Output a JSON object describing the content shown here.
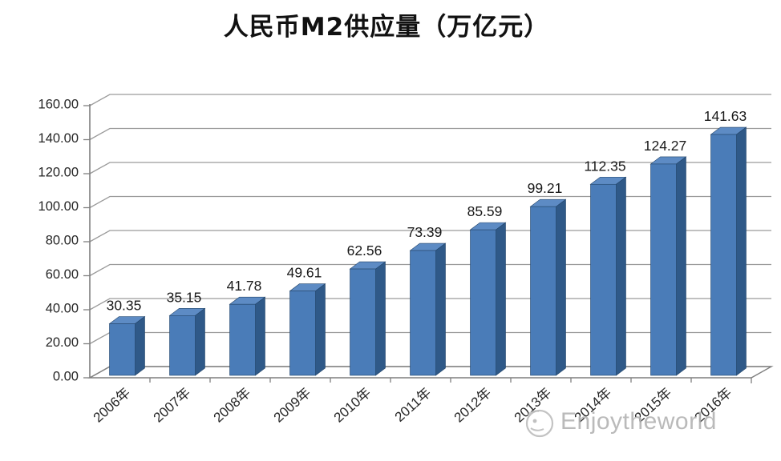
{
  "chart_data": {
    "type": "bar",
    "style": "3d-column",
    "title": "人民币M2供应量（万亿元）",
    "categories": [
      "2006年",
      "2007年",
      "2008年",
      "2009年",
      "2010年",
      "2011年",
      "2012年",
      "2013年",
      "2014年",
      "2015年",
      "2016年"
    ],
    "values": [
      30.35,
      35.15,
      41.78,
      49.61,
      62.56,
      73.39,
      85.59,
      99.21,
      112.35,
      124.27,
      141.63
    ],
    "value_labels": [
      "30.35",
      "35.15",
      "41.78",
      "49.61",
      "62.56",
      "73.39",
      "85.59",
      "99.21",
      "112.35",
      "124.27",
      "141.63"
    ],
    "xlabel": "",
    "ylabel": "",
    "ylim": [
      0,
      160
    ],
    "ytick_step": 20,
    "ytick_labels": [
      "0.00",
      "20.00",
      "40.00",
      "60.00",
      "80.00",
      "100.00",
      "120.00",
      "140.00",
      "160.00"
    ],
    "grid": true,
    "legend": false,
    "colors": {
      "bar_front": "#4a7cb8",
      "bar_side": "#2f5988",
      "bar_top": "#5d8bc4",
      "bar_edge": "#24466b",
      "gridline": "#9a9a9a",
      "axis": "#7f7f7f",
      "label_text": "#1a1a1a",
      "tick_text": "#262626",
      "background": "#ffffff"
    }
  },
  "watermark": {
    "text": "Enjoytheworld",
    "icon": "enjoytheworld-logo",
    "color": "#b5b5b5"
  }
}
